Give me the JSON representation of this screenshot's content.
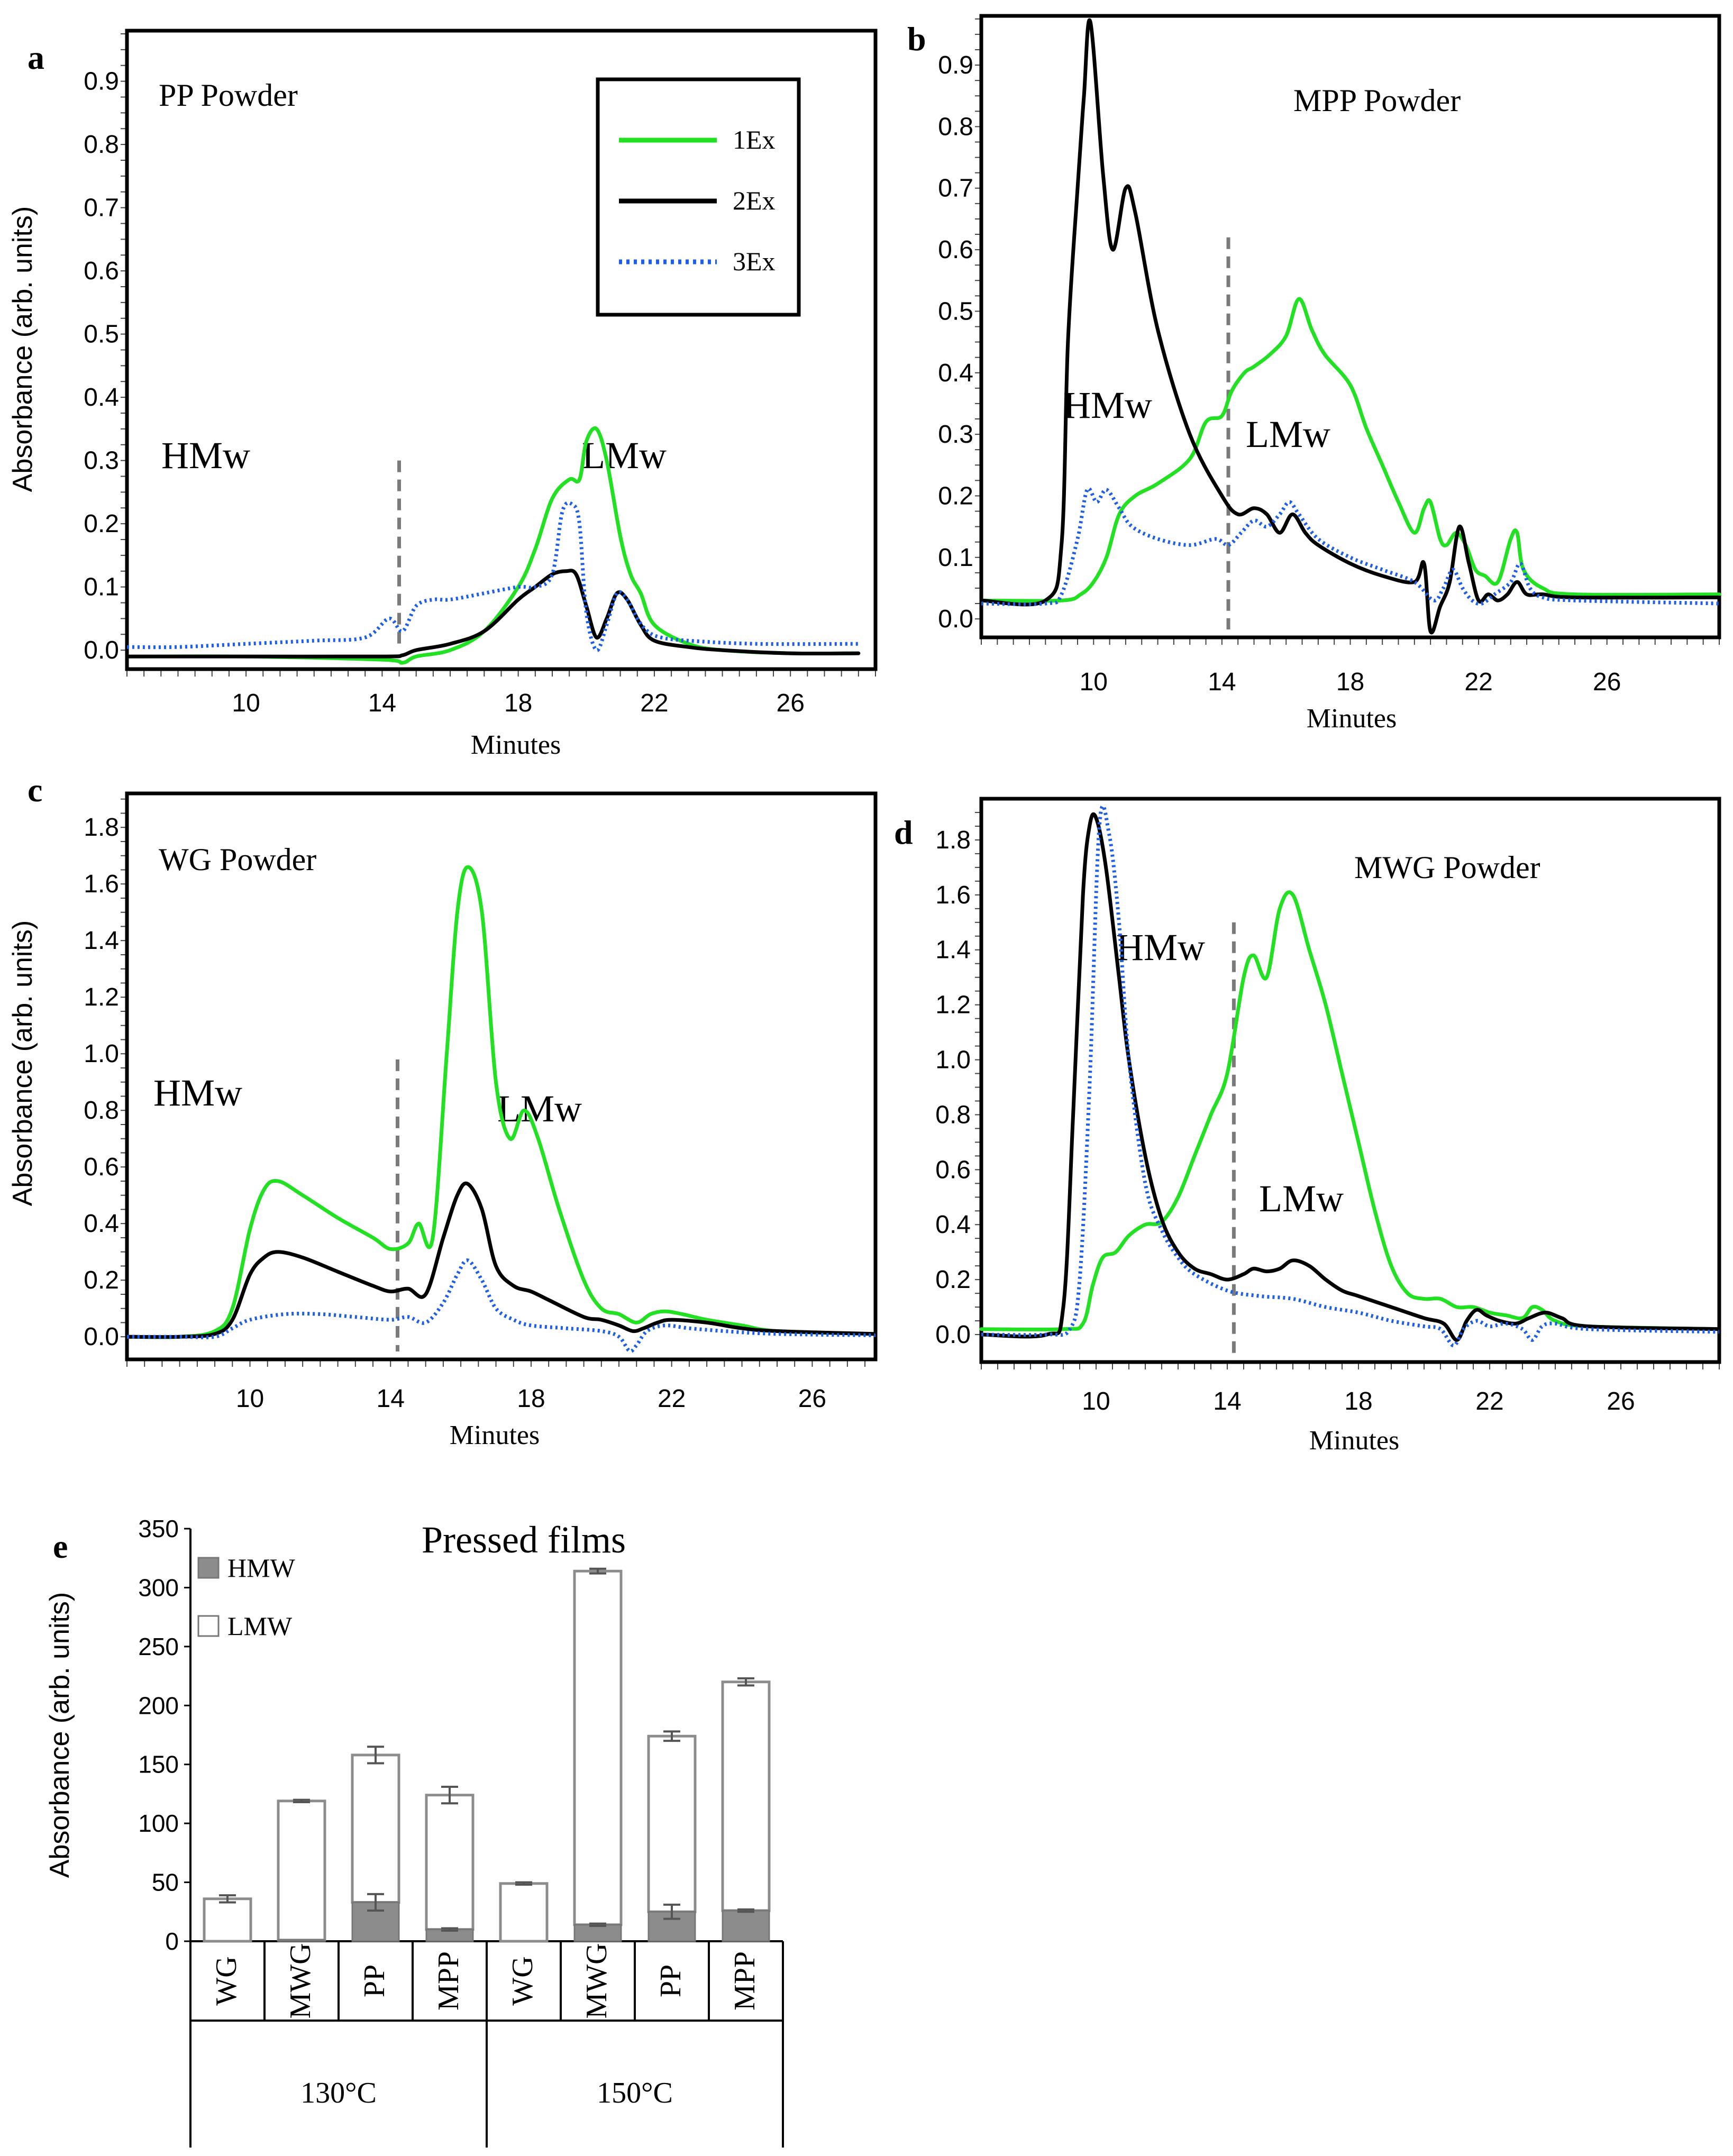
{
  "chart_data": [
    {
      "panel": "a",
      "type": "line",
      "title": "PP Powder",
      "xlabel": "Minutes",
      "ylabel": "Absorbance (arb. units)",
      "xlim": [
        6.5,
        28.5
      ],
      "ylim": [
        -0.03,
        0.98
      ],
      "xticks": [
        "10",
        "14",
        "18",
        "22",
        "26"
      ],
      "yticks": [
        "0.0",
        "0.1",
        "0.2",
        "0.3",
        "0.4",
        "0.5",
        "0.6",
        "0.7",
        "0.8",
        "0.9"
      ],
      "cutoff_x": 14.5,
      "region_labels": {
        "hmw": "HMw",
        "lmw": "LMw"
      },
      "legend": [
        {
          "name": "1Ex",
          "color": "#22e022",
          "style": "solid"
        },
        {
          "name": "2Ex",
          "color": "#000000",
          "style": "solid"
        },
        {
          "name": "3Ex",
          "color": "#1f5fe8",
          "style": "dotted"
        }
      ],
      "series": [
        {
          "name": "1Ex",
          "x": [
            6.5,
            10,
            14,
            14.6,
            15,
            16,
            17,
            18,
            18.5,
            19,
            19.5,
            19.8,
            20,
            20.3,
            20.6,
            21,
            21.3,
            21.6,
            22,
            23,
            24,
            26,
            28
          ],
          "y": [
            -0.01,
            -0.01,
            -0.015,
            -0.02,
            -0.01,
            0.0,
            0.03,
            0.1,
            0.16,
            0.24,
            0.27,
            0.27,
            0.33,
            0.35,
            0.3,
            0.18,
            0.12,
            0.09,
            0.04,
            0.01,
            0.0,
            -0.005,
            -0.005
          ]
        },
        {
          "name": "2Ex",
          "x": [
            6.5,
            10,
            14,
            14.6,
            15,
            16,
            17,
            18,
            18.5,
            19,
            19.4,
            19.7,
            20,
            20.3,
            20.6,
            20.9,
            21.2,
            21.6,
            22,
            23,
            24,
            26,
            28
          ],
          "y": [
            -0.01,
            -0.01,
            -0.01,
            -0.008,
            0.0,
            0.01,
            0.03,
            0.08,
            0.1,
            0.12,
            0.125,
            0.12,
            0.07,
            0.02,
            0.05,
            0.09,
            0.08,
            0.04,
            0.015,
            0.005,
            0.0,
            -0.005,
            -0.005
          ]
        },
        {
          "name": "3Ex",
          "x": [
            6.5,
            8,
            10,
            12,
            13.5,
            14.2,
            14.6,
            15,
            15.5,
            16,
            17,
            18,
            18.5,
            19,
            19.3,
            19.6,
            19.8,
            20,
            20.3,
            20.6,
            20.9,
            21.2,
            21.5,
            21.8,
            22.2,
            23,
            25,
            28
          ],
          "y": [
            0.005,
            0.005,
            0.01,
            0.015,
            0.02,
            0.05,
            0.03,
            0.07,
            0.08,
            0.08,
            0.09,
            0.1,
            0.1,
            0.12,
            0.22,
            0.23,
            0.2,
            0.06,
            0.0,
            0.04,
            0.09,
            0.08,
            0.05,
            0.03,
            0.02,
            0.015,
            0.01,
            0.01
          ]
        }
      ]
    },
    {
      "panel": "b",
      "type": "line",
      "title": "MPP Powder",
      "xlabel": "Minutes",
      "ylabel": "",
      "xlim": [
        6.5,
        29.5
      ],
      "ylim": [
        -0.03,
        0.98
      ],
      "xticks": [
        "10",
        "14",
        "18",
        "22",
        "26"
      ],
      "yticks": [
        "0.0",
        "0.1",
        "0.2",
        "0.3",
        "0.4",
        "0.5",
        "0.6",
        "0.7",
        "0.8",
        "0.9"
      ],
      "cutoff_x": 14.2,
      "region_labels": {
        "hmw": "HMw",
        "lmw": "LMw"
      },
      "series": [
        {
          "name": "1Ex",
          "x": [
            6.5,
            9,
            9.6,
            10,
            10.4,
            10.8,
            11.3,
            12,
            13,
            13.5,
            14,
            14.3,
            14.7,
            15,
            15.5,
            16,
            16.4,
            16.8,
            17.2,
            18,
            18.5,
            19,
            19.5,
            20,
            20.3,
            20.5,
            20.8,
            21,
            21.3,
            21.6,
            21.9,
            22.2,
            22.6,
            23,
            23.2,
            23.4,
            24,
            25,
            29.5
          ],
          "y": [
            0.03,
            0.03,
            0.04,
            0.06,
            0.1,
            0.17,
            0.2,
            0.22,
            0.26,
            0.32,
            0.33,
            0.37,
            0.4,
            0.41,
            0.43,
            0.46,
            0.52,
            0.47,
            0.43,
            0.38,
            0.31,
            0.25,
            0.19,
            0.14,
            0.18,
            0.19,
            0.13,
            0.12,
            0.14,
            0.12,
            0.08,
            0.07,
            0.06,
            0.13,
            0.14,
            0.08,
            0.05,
            0.04,
            0.04
          ]
        },
        {
          "name": "2Ex",
          "x": [
            6.5,
            8.5,
            9,
            9.2,
            9.5,
            9.7,
            9.9,
            10.3,
            10.6,
            11,
            11.3,
            12,
            13,
            14,
            14.5,
            15,
            15.4,
            15.8,
            16.2,
            16.6,
            17,
            18,
            19,
            20,
            20.3,
            20.5,
            20.8,
            21.1,
            21.4,
            21.7,
            22,
            22.3,
            22.6,
            22.9,
            23.2,
            23.5,
            24,
            25,
            29.5
          ],
          "y": [
            0.03,
            0.03,
            0.12,
            0.45,
            0.7,
            0.85,
            0.97,
            0.72,
            0.6,
            0.7,
            0.66,
            0.47,
            0.3,
            0.2,
            0.17,
            0.18,
            0.17,
            0.14,
            0.17,
            0.14,
            0.12,
            0.09,
            0.07,
            0.06,
            0.09,
            -0.02,
            0.02,
            0.06,
            0.15,
            0.09,
            0.03,
            0.04,
            0.03,
            0.04,
            0.06,
            0.04,
            0.04,
            0.035,
            0.035
          ]
        },
        {
          "name": "3Ex",
          "x": [
            6.5,
            8.5,
            9,
            9.5,
            9.8,
            10.1,
            10.4,
            10.8,
            11.2,
            12,
            13,
            13.8,
            14.2,
            14.6,
            15,
            15.4,
            15.8,
            16.1,
            16.4,
            17,
            18,
            19,
            20,
            20.6,
            20.9,
            21.2,
            21.5,
            21.8,
            22.1,
            22.5,
            23,
            23.3,
            23.6,
            24,
            25,
            29.5
          ],
          "y": [
            0.025,
            0.025,
            0.04,
            0.13,
            0.21,
            0.19,
            0.21,
            0.18,
            0.15,
            0.13,
            0.12,
            0.13,
            0.12,
            0.14,
            0.16,
            0.15,
            0.17,
            0.19,
            0.17,
            0.13,
            0.1,
            0.08,
            0.06,
            0.03,
            0.05,
            0.08,
            0.05,
            0.03,
            0.025,
            0.04,
            0.06,
            0.09,
            0.05,
            0.035,
            0.03,
            0.025
          ]
        }
      ]
    },
    {
      "panel": "c",
      "type": "line",
      "title": "WG Powder",
      "xlabel": "Minutes",
      "ylabel": "Absorbance (arb. units)",
      "xlim": [
        6.5,
        27.8
      ],
      "ylim": [
        -0.08,
        1.92
      ],
      "xticks": [
        "10",
        "14",
        "18",
        "22",
        "26"
      ],
      "yticks": [
        "0.0",
        "0.2",
        "0.4",
        "0.6",
        "0.8",
        "1.0",
        "1.2",
        "1.4",
        "1.6",
        "1.8"
      ],
      "cutoff_x": 14.2,
      "region_labels": {
        "hmw": "HMw",
        "lmw": "LMw"
      },
      "series": [
        {
          "name": "1Ex",
          "x": [
            6.5,
            8,
            9,
            9.5,
            10,
            10.4,
            10.8,
            11.5,
            12.5,
            13.5,
            14,
            14.5,
            14.8,
            15.2,
            15.6,
            15.9,
            16.2,
            16.6,
            17,
            17.4,
            17.8,
            18.2,
            18.8,
            19.5,
            20,
            20.5,
            21,
            21.4,
            21.8,
            22.3,
            23,
            24,
            25,
            27.8
          ],
          "y": [
            0.0,
            0.0,
            0.02,
            0.1,
            0.38,
            0.52,
            0.55,
            0.5,
            0.42,
            0.35,
            0.31,
            0.33,
            0.4,
            0.35,
            1.0,
            1.5,
            1.66,
            1.5,
            0.9,
            0.7,
            0.8,
            0.7,
            0.45,
            0.2,
            0.1,
            0.08,
            0.05,
            0.08,
            0.09,
            0.08,
            0.06,
            0.04,
            0.02,
            0.01
          ]
        },
        {
          "name": "2Ex",
          "x": [
            6.5,
            8,
            9,
            9.5,
            10,
            10.4,
            10.8,
            11.5,
            12.5,
            13.5,
            14,
            14.5,
            15,
            15.5,
            15.9,
            16.2,
            16.6,
            17,
            17.5,
            18,
            18.5,
            19.5,
            20,
            20.5,
            20.9,
            21.2,
            21.6,
            22,
            23,
            24,
            25,
            27.8
          ],
          "y": [
            0.0,
            0.0,
            0.01,
            0.06,
            0.22,
            0.28,
            0.3,
            0.28,
            0.23,
            0.18,
            0.16,
            0.17,
            0.15,
            0.35,
            0.5,
            0.54,
            0.45,
            0.25,
            0.18,
            0.16,
            0.13,
            0.07,
            0.06,
            0.04,
            0.02,
            0.03,
            0.05,
            0.06,
            0.05,
            0.03,
            0.02,
            0.01
          ]
        },
        {
          "name": "3Ex",
          "x": [
            6.5,
            8,
            9,
            9.5,
            10,
            11,
            12,
            13,
            14,
            14.5,
            15,
            15.5,
            15.9,
            16.2,
            16.6,
            17,
            17.5,
            18,
            19,
            20,
            20.5,
            20.8,
            21,
            21.3,
            21.8,
            22.5,
            23.5,
            25,
            27.8
          ],
          "y": [
            0.0,
            0.0,
            0.0,
            0.03,
            0.06,
            0.08,
            0.08,
            0.07,
            0.06,
            0.07,
            0.05,
            0.12,
            0.22,
            0.27,
            0.2,
            0.1,
            0.06,
            0.04,
            0.03,
            0.02,
            0.0,
            -0.05,
            -0.03,
            0.02,
            0.04,
            0.03,
            0.02,
            0.01,
            0.005
          ]
        }
      ]
    },
    {
      "panel": "d",
      "type": "line",
      "title": "MWG Powder",
      "xlabel": "Minutes",
      "ylabel": "",
      "xlim": [
        6.5,
        29.0
      ],
      "ylim": [
        -0.1,
        1.95
      ],
      "xticks": [
        "10",
        "14",
        "18",
        "22",
        "26"
      ],
      "yticks": [
        "0.0",
        "0.2",
        "0.4",
        "0.6",
        "0.8",
        "1.0",
        "1.2",
        "1.4",
        "1.6",
        "1.8"
      ],
      "cutoff_x": 14.2,
      "region_labels": {
        "hmw": "HMw",
        "lmw": "LMw"
      },
      "series": [
        {
          "name": "1Ex",
          "x": [
            6.5,
            9,
            9.6,
            9.9,
            10.2,
            10.6,
            11,
            11.5,
            12,
            12.5,
            13,
            13.5,
            14,
            14.5,
            14.8,
            15.2,
            15.6,
            16,
            16.5,
            17,
            17.5,
            18,
            18.5,
            19,
            19.5,
            20,
            20.5,
            21,
            21.5,
            22,
            22.5,
            23,
            23.3,
            23.6,
            24,
            25,
            29
          ],
          "y": [
            0.02,
            0.02,
            0.04,
            0.18,
            0.28,
            0.3,
            0.36,
            0.4,
            0.41,
            0.5,
            0.65,
            0.8,
            0.95,
            1.3,
            1.38,
            1.3,
            1.55,
            1.6,
            1.4,
            1.2,
            0.95,
            0.7,
            0.45,
            0.25,
            0.15,
            0.13,
            0.13,
            0.1,
            0.1,
            0.08,
            0.07,
            0.06,
            0.1,
            0.09,
            0.05,
            0.03,
            0.02
          ]
        },
        {
          "name": "2Ex",
          "x": [
            6.5,
            8.5,
            9,
            9.3,
            9.6,
            9.8,
            10,
            10.3,
            10.7,
            11,
            11.5,
            12,
            12.5,
            13,
            13.5,
            14,
            14.5,
            14.8,
            15.2,
            15.6,
            16,
            16.5,
            17,
            17.5,
            18,
            19,
            20,
            20.6,
            21,
            21.3,
            21.6,
            21.9,
            22.3,
            22.8,
            23.2,
            23.7,
            24.2,
            25,
            29
          ],
          "y": [
            0.0,
            0.0,
            0.1,
            0.8,
            1.6,
            1.85,
            1.88,
            1.7,
            1.3,
            1.0,
            0.65,
            0.42,
            0.3,
            0.24,
            0.22,
            0.2,
            0.22,
            0.24,
            0.23,
            0.24,
            0.27,
            0.25,
            0.2,
            0.16,
            0.14,
            0.1,
            0.06,
            0.04,
            -0.02,
            0.05,
            0.09,
            0.07,
            0.05,
            0.04,
            0.06,
            0.08,
            0.06,
            0.03,
            0.02
          ]
        },
        {
          "name": "3Ex",
          "x": [
            6.5,
            8.5,
            9.2,
            9.5,
            9.8,
            10.1,
            10.4,
            10.7,
            11,
            11.5,
            12,
            12.5,
            13,
            14,
            15,
            16,
            17,
            18,
            19,
            20,
            20.5,
            20.9,
            21.2,
            21.6,
            22,
            22.5,
            23,
            23.3,
            23.6,
            24,
            25,
            29
          ],
          "y": [
            0.0,
            0.0,
            0.02,
            0.2,
            0.9,
            1.85,
            1.82,
            1.5,
            1.0,
            0.55,
            0.38,
            0.28,
            0.22,
            0.16,
            0.14,
            0.13,
            0.1,
            0.08,
            0.05,
            0.03,
            0.02,
            -0.04,
            0.02,
            0.05,
            0.03,
            0.04,
            0.02,
            -0.02,
            0.03,
            0.04,
            0.02,
            0.01
          ]
        }
      ]
    },
    {
      "panel": "e",
      "type": "bar",
      "title": "Pressed films",
      "ylabel": "Absorbance (arb. units)",
      "ylim": [
        0,
        350
      ],
      "yticks": [
        "0",
        "50",
        "100",
        "150",
        "200",
        "250",
        "300",
        "350"
      ],
      "categories": [
        "WG",
        "MWG",
        "PP",
        "MPP",
        "WG",
        "MWG",
        "PP",
        "MPP"
      ],
      "groups": [
        {
          "label": "130°C",
          "count": 4
        },
        {
          "label": "150°C",
          "count": 4
        }
      ],
      "legend": [
        {
          "name": "HMW",
          "color": "#8c8c8c"
        },
        {
          "name": "LMW",
          "color": "#ffffff"
        }
      ],
      "series": [
        {
          "name": "HMW",
          "values": [
            0,
            1,
            33,
            10,
            0,
            14,
            25,
            26
          ],
          "errors": [
            0,
            0,
            7,
            1,
            0,
            1,
            6,
            1
          ]
        },
        {
          "name": "LMW",
          "values": [
            36,
            118,
            125,
            114,
            49,
            300,
            149,
            194
          ],
          "errors": [
            3,
            1,
            7,
            7,
            1,
            2,
            4,
            3
          ]
        }
      ]
    }
  ],
  "panel_letters": [
    "a",
    "b",
    "c",
    "d",
    "e"
  ]
}
